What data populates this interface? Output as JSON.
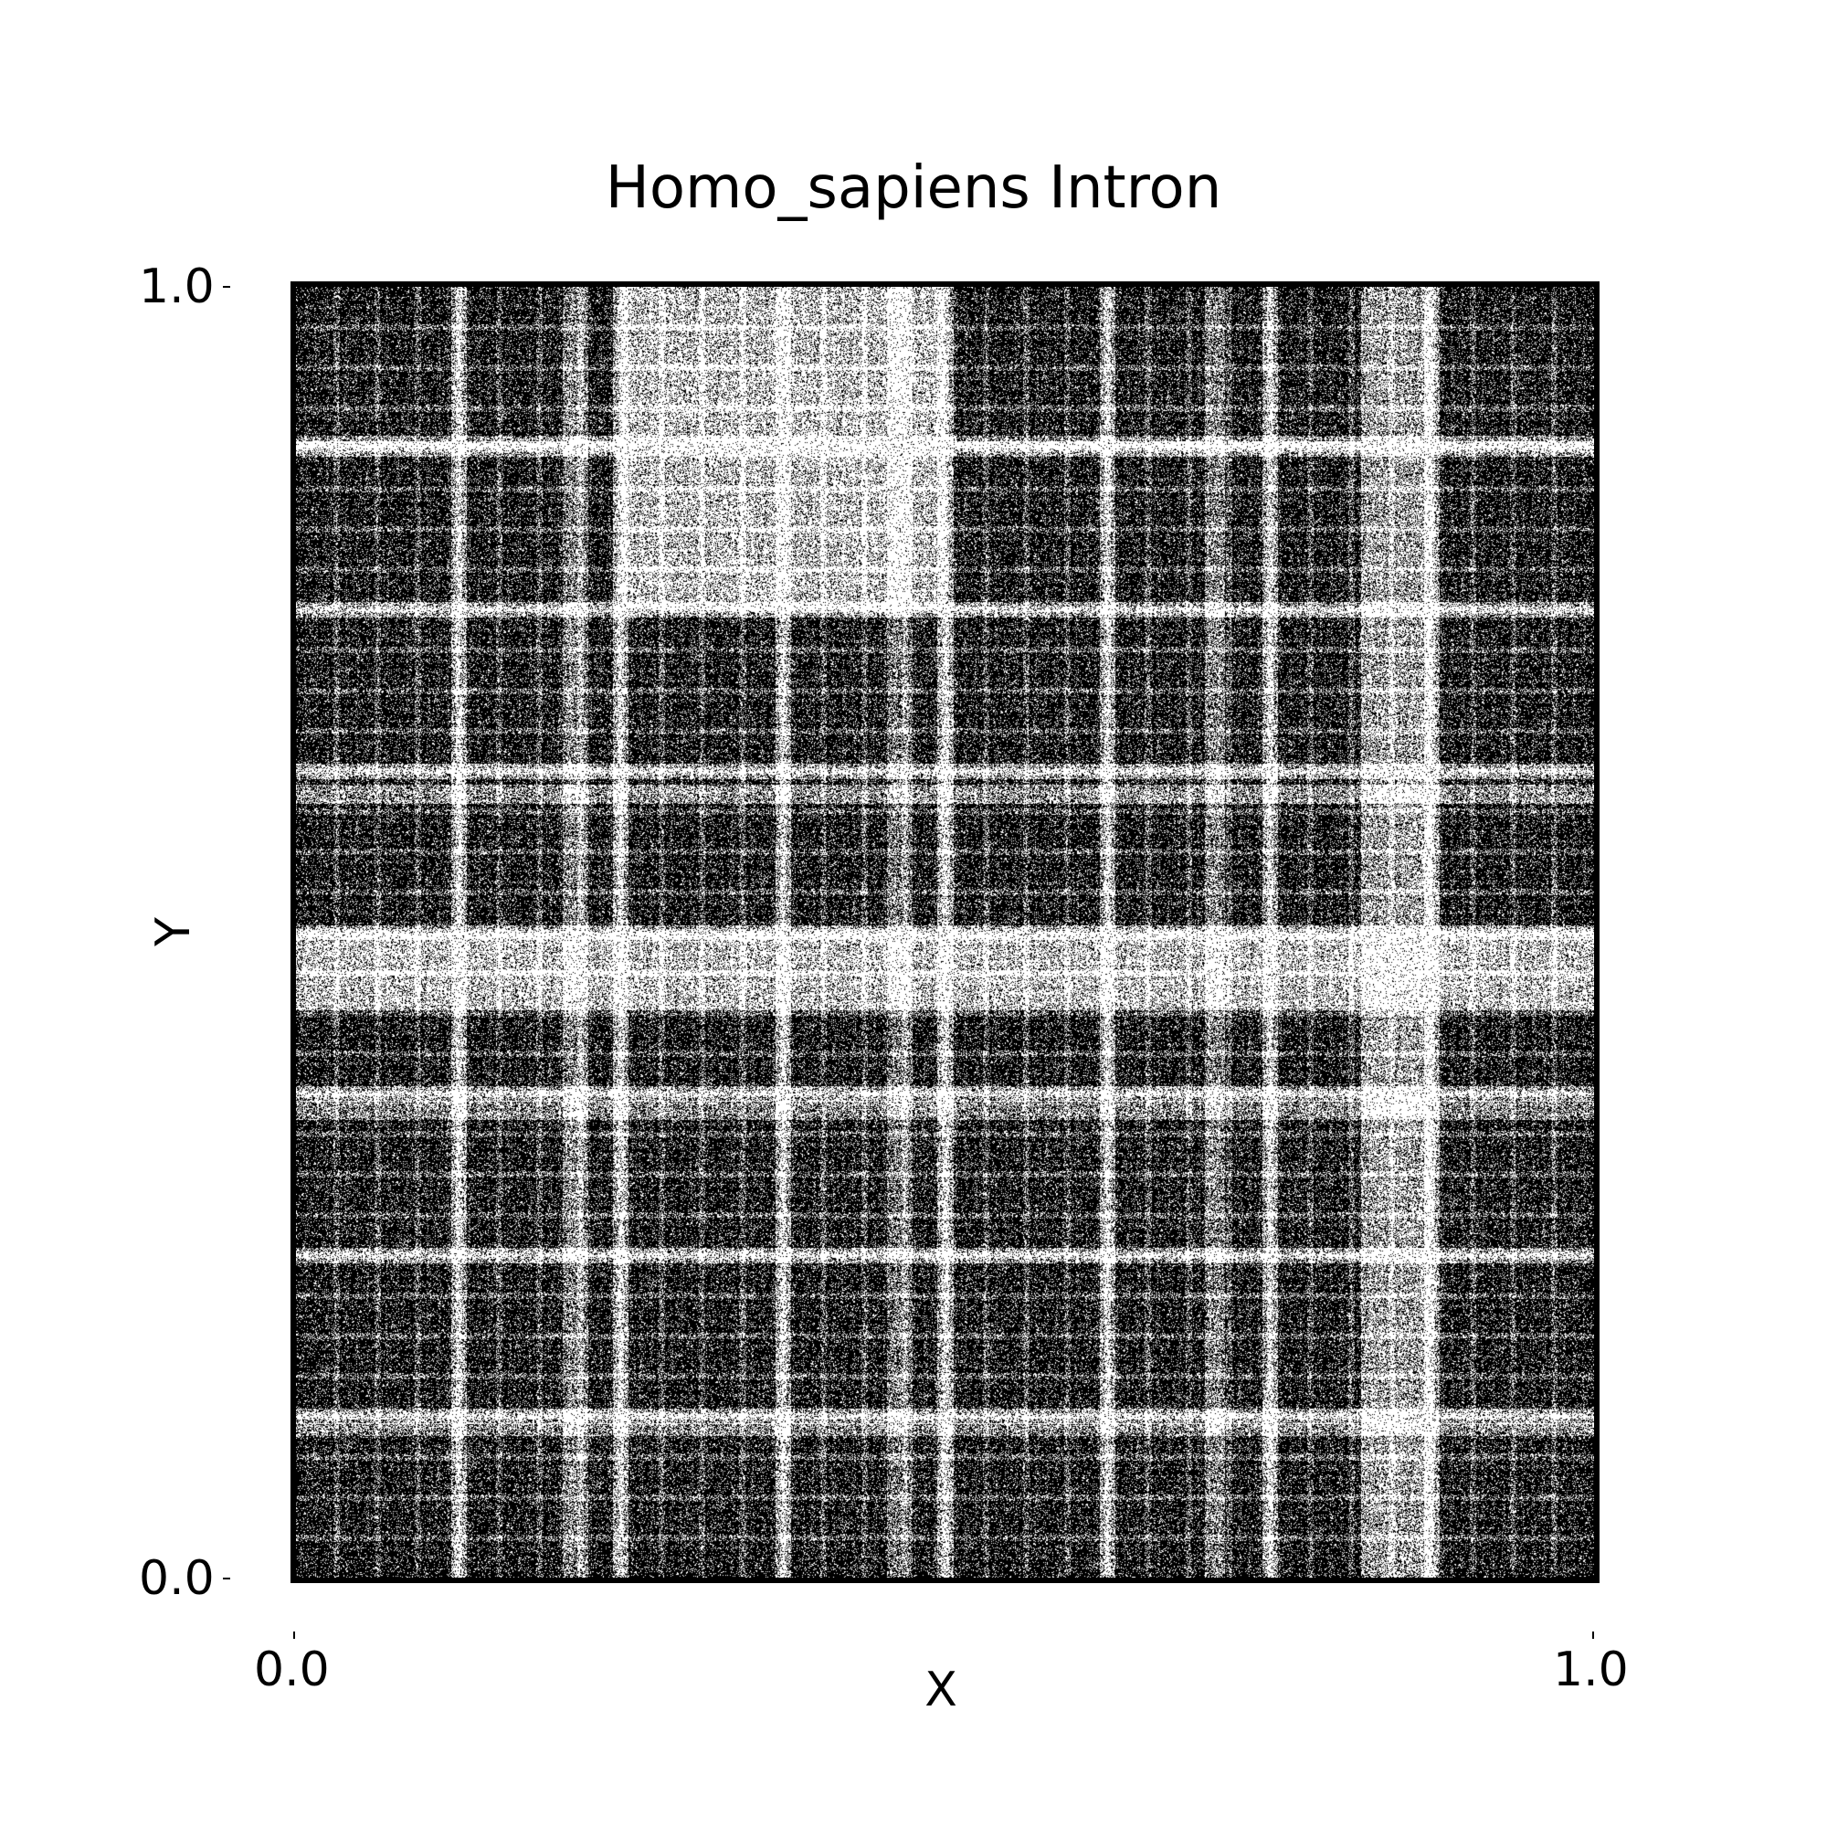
{
  "chart_data": {
    "type": "heatmap",
    "title": "Homo_sapiens Intron",
    "xlabel": "X",
    "ylabel": "Y",
    "xlim": [
      0.0,
      1.0
    ],
    "ylim": [
      0.0,
      1.0
    ],
    "x_ticks": [
      "0.0",
      "1.0"
    ],
    "y_ticks": [
      "0.0",
      "1.0"
    ],
    "grid": false,
    "colors": {
      "background": "#000000",
      "points": "#ffffff"
    }
  }
}
